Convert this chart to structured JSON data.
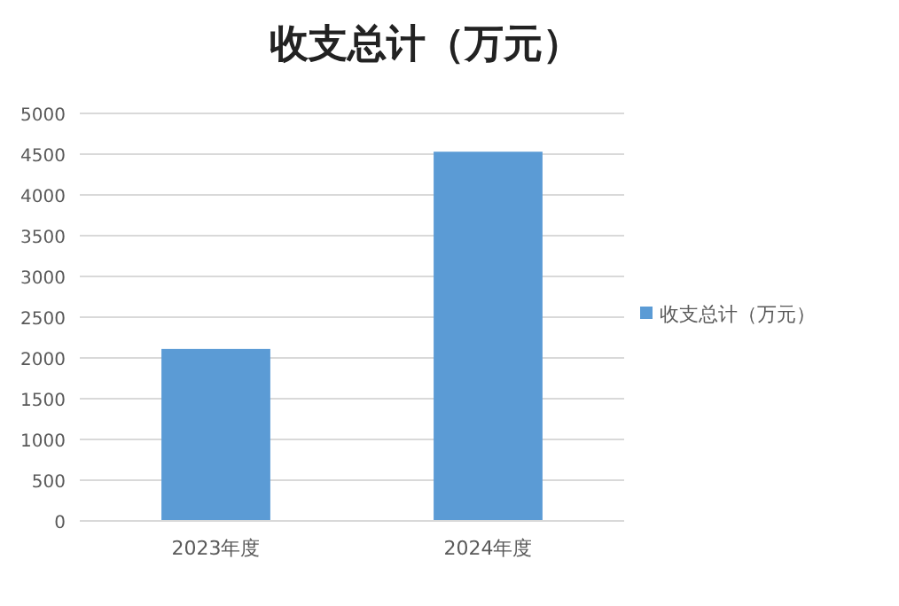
{
  "chart_data": {
    "type": "bar",
    "title": "收支总计（万元）",
    "categories": [
      "2023年度",
      "2024年度"
    ],
    "series": [
      {
        "name": "收支总计（万元）",
        "color": "#5b9bd5",
        "values": [
          2110,
          4530
        ]
      }
    ],
    "ylim": [
      0,
      5000
    ],
    "yticks": [
      0,
      500,
      1000,
      1500,
      2000,
      2500,
      3000,
      3500,
      4000,
      4500,
      5000
    ],
    "grid": "y",
    "legend": "right"
  }
}
